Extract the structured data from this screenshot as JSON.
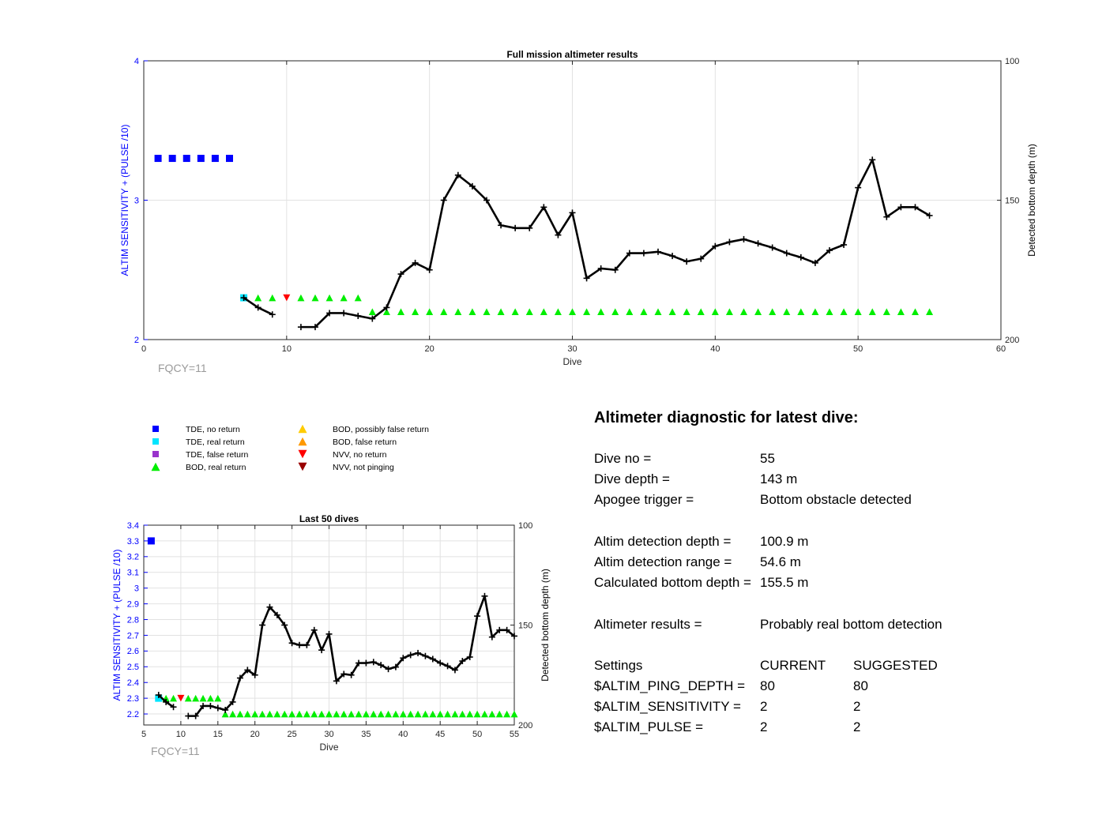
{
  "chart_data": [
    {
      "type": "line",
      "title": "Full mission altimeter results",
      "xlabel": "Dive",
      "ylabel_left": "ALTIM SENSITIVITY + (PULSE /10)",
      "ylabel_right": "Detected bottom depth (m)",
      "xlim": [
        0,
        60
      ],
      "ylim_left": [
        2,
        4
      ],
      "ylim_right": [
        100,
        200
      ],
      "right_axis_reversed": true,
      "xticks": [
        "0",
        "10",
        "20",
        "30",
        "40",
        "50",
        "60"
      ],
      "yticks_left": [
        "2",
        "3",
        "4"
      ],
      "yticks_right": [
        "100",
        "150",
        "200"
      ],
      "grid": "vertical",
      "annotation": "FQCY=11",
      "series": [
        {
          "name": "TDE, no return",
          "marker": "square",
          "color": "#0000ff",
          "x": [
            1,
            2,
            3,
            4,
            5,
            6
          ],
          "y": [
            3.3,
            3.3,
            3.3,
            3.3,
            3.3,
            3.3
          ]
        },
        {
          "name": "TDE, real return",
          "marker": "square",
          "color": "#00e5ff",
          "x": [
            7
          ],
          "y": [
            2.3
          ]
        },
        {
          "name": "BOD, real return",
          "marker": "triangle-up",
          "color": "#00ee00",
          "x": [
            8,
            9,
            11,
            12,
            13,
            14,
            15,
            16,
            17,
            18,
            19,
            20,
            21,
            22,
            23,
            24,
            25,
            26,
            27,
            28,
            29,
            30,
            31,
            32,
            33,
            34,
            35,
            36,
            37,
            38,
            39,
            40,
            41,
            42,
            43,
            44,
            45,
            46,
            47,
            48,
            49,
            50,
            51,
            52,
            53,
            54,
            55
          ],
          "y": [
            2.3,
            2.3,
            2.3,
            2.3,
            2.3,
            2.3,
            2.3,
            2.2,
            2.2,
            2.2,
            2.2,
            2.2,
            2.2,
            2.2,
            2.2,
            2.2,
            2.2,
            2.2,
            2.2,
            2.2,
            2.2,
            2.2,
            2.2,
            2.2,
            2.2,
            2.2,
            2.2,
            2.2,
            2.2,
            2.2,
            2.2,
            2.2,
            2.2,
            2.2,
            2.2,
            2.2,
            2.2,
            2.2,
            2.2,
            2.2,
            2.2,
            2.2,
            2.2,
            2.2,
            2.2,
            2.2,
            2.2
          ]
        },
        {
          "name": "NVV, no return",
          "marker": "triangle-down",
          "color": "#ff0000",
          "x": [
            10
          ],
          "y": [
            2.3
          ]
        },
        {
          "name": "Detected bottom depth",
          "axis": "right",
          "marker": "plus-line",
          "color": "#000000",
          "segments": [
            {
              "x": [
                7,
                8,
                9
              ],
              "y": [
                185,
                188.5,
                191
              ]
            },
            {
              "x": [
                11,
                12,
                13,
                14,
                15,
                16,
                17,
                18,
                19,
                20,
                21,
                22,
                23,
                24,
                25,
                26,
                27,
                28,
                29,
                30,
                31,
                32,
                33,
                34,
                35,
                36,
                37,
                38,
                39,
                40,
                41,
                42,
                43,
                44,
                45,
                46,
                47,
                48,
                49,
                50,
                51,
                52,
                53,
                54,
                55
              ],
              "y": [
                195.5,
                195.5,
                190.5,
                190.5,
                191.5,
                192.5,
                188.5,
                176.5,
                172.5,
                175,
                150,
                141,
                145,
                150,
                159,
                160,
                160,
                152.5,
                162.5,
                154.5,
                178,
                174.5,
                175,
                169,
                169,
                168.5,
                170,
                172,
                171,
                166.5,
                165,
                164,
                165.5,
                167,
                169,
                170.5,
                172.5,
                168,
                166,
                145.5,
                135.5,
                156,
                152.5,
                152.5,
                155.5
              ]
            }
          ]
        }
      ]
    },
    {
      "type": "line",
      "title": "Last 50 dives",
      "xlabel": "Dive",
      "ylabel_left": "ALTIM SENSITIVITY + (PULSE /10)",
      "ylabel_right": "Detected bottom depth (m)",
      "xlim": [
        5,
        55
      ],
      "ylim_left": [
        2.13,
        3.4
      ],
      "ylim_right": [
        100,
        200
      ],
      "right_axis_reversed": true,
      "xticks": [
        "5",
        "10",
        "15",
        "20",
        "25",
        "30",
        "35",
        "40",
        "45",
        "50",
        "55"
      ],
      "yticks_left": [
        "2.2",
        "2.3",
        "2.4",
        "2.5",
        "2.6",
        "2.7",
        "2.8",
        "2.9",
        "3",
        "3.1",
        "3.2",
        "3.3",
        "3.4"
      ],
      "yticks_right": [
        "100",
        "150",
        "200"
      ],
      "grid": "both",
      "annotation": "FQCY=11",
      "series": [
        {
          "name": "TDE, no return",
          "marker": "square",
          "color": "#0000ff",
          "x": [
            6
          ],
          "y": [
            3.3
          ]
        },
        {
          "name": "TDE, real return",
          "marker": "square",
          "color": "#00e5ff",
          "x": [
            7
          ],
          "y": [
            2.3
          ]
        },
        {
          "name": "BOD, real return",
          "marker": "triangle-up",
          "color": "#00ee00",
          "x": [
            8,
            9,
            11,
            12,
            13,
            14,
            15,
            16,
            17,
            18,
            19,
            20,
            21,
            22,
            23,
            24,
            25,
            26,
            27,
            28,
            29,
            30,
            31,
            32,
            33,
            34,
            35,
            36,
            37,
            38,
            39,
            40,
            41,
            42,
            43,
            44,
            45,
            46,
            47,
            48,
            49,
            50,
            51,
            52,
            53,
            54,
            55
          ],
          "y": [
            2.3,
            2.3,
            2.3,
            2.3,
            2.3,
            2.3,
            2.3,
            2.2,
            2.2,
            2.2,
            2.2,
            2.2,
            2.2,
            2.2,
            2.2,
            2.2,
            2.2,
            2.2,
            2.2,
            2.2,
            2.2,
            2.2,
            2.2,
            2.2,
            2.2,
            2.2,
            2.2,
            2.2,
            2.2,
            2.2,
            2.2,
            2.2,
            2.2,
            2.2,
            2.2,
            2.2,
            2.2,
            2.2,
            2.2,
            2.2,
            2.2,
            2.2,
            2.2,
            2.2,
            2.2,
            2.2,
            2.2
          ]
        },
        {
          "name": "NVV, no return",
          "marker": "triangle-down",
          "color": "#ff0000",
          "x": [
            10
          ],
          "y": [
            2.3
          ]
        },
        {
          "name": "Detected bottom depth",
          "axis": "right",
          "marker": "plus-line",
          "color": "#000000",
          "segments": [
            {
              "x": [
                7,
                8,
                9
              ],
              "y": [
                185,
                188.5,
                191
              ]
            },
            {
              "x": [
                11,
                12,
                13,
                14,
                15,
                16,
                17,
                18,
                19,
                20,
                21,
                22,
                23,
                24,
                25,
                26,
                27,
                28,
                29,
                30,
                31,
                32,
                33,
                34,
                35,
                36,
                37,
                38,
                39,
                40,
                41,
                42,
                43,
                44,
                45,
                46,
                47,
                48,
                49,
                50,
                51,
                52,
                53,
                54,
                55
              ],
              "y": [
                195.5,
                195.5,
                190.5,
                190.5,
                191.5,
                192.5,
                188.5,
                176.5,
                172.5,
                175,
                150,
                141,
                145,
                150,
                159,
                160,
                160,
                152.5,
                162.5,
                154.5,
                178,
                174.5,
                175,
                169,
                169,
                168.5,
                170,
                172,
                171,
                166.5,
                165,
                164,
                165.5,
                167,
                169,
                170.5,
                172.5,
                168,
                166,
                145.5,
                135.5,
                156,
                152.5,
                152.5,
                155.5
              ]
            }
          ]
        }
      ]
    }
  ],
  "legend": {
    "items": [
      {
        "label": "TDE, no return",
        "marker": "square",
        "color": "#0000ff"
      },
      {
        "label": "TDE, real return",
        "marker": "square",
        "color": "#00e5ff"
      },
      {
        "label": "TDE, false return",
        "marker": "square",
        "color": "#9933cc"
      },
      {
        "label": "BOD, real return",
        "marker": "triangle-up",
        "color": "#00ee00"
      },
      {
        "label": "BOD, possibly false return",
        "marker": "triangle-up",
        "color": "#ffcc00"
      },
      {
        "label": "BOD, false return",
        "marker": "triangle-up",
        "color": "#ff9900"
      },
      {
        "label": "NVV, no return",
        "marker": "triangle-down",
        "color": "#ff0000"
      },
      {
        "label": "NVV, not pinging",
        "marker": "triangle-down",
        "color": "#990000"
      }
    ]
  },
  "diagnostic": {
    "heading": "Altimeter diagnostic for latest dive:",
    "dive_no_label": "Dive no =",
    "dive_no": "55",
    "dive_depth_label": "Dive depth =",
    "dive_depth": "143 m",
    "apogee_label": "Apogee trigger =",
    "apogee": "Bottom obstacle detected",
    "detection_depth_label": "Altim detection depth =",
    "detection_depth": "100.9 m",
    "detection_range_label": "Altim detection range =",
    "detection_range": "54.6 m",
    "bottom_depth_label": "Calculated bottom depth =",
    "bottom_depth": "155.5 m",
    "results_label": "Altimeter results =",
    "results": "Probably real bottom detection",
    "settings_header": "Settings",
    "current_header": "CURRENT",
    "suggested_header": "SUGGESTED",
    "settings": [
      {
        "name": "$ALTIM_PING_DEPTH =",
        "current": "80",
        "suggested": "80"
      },
      {
        "name": "$ALTIM_SENSITIVITY =",
        "current": "2",
        "suggested": "2"
      },
      {
        "name": "$ALTIM_PULSE =",
        "current": "2",
        "suggested": "2"
      }
    ]
  }
}
